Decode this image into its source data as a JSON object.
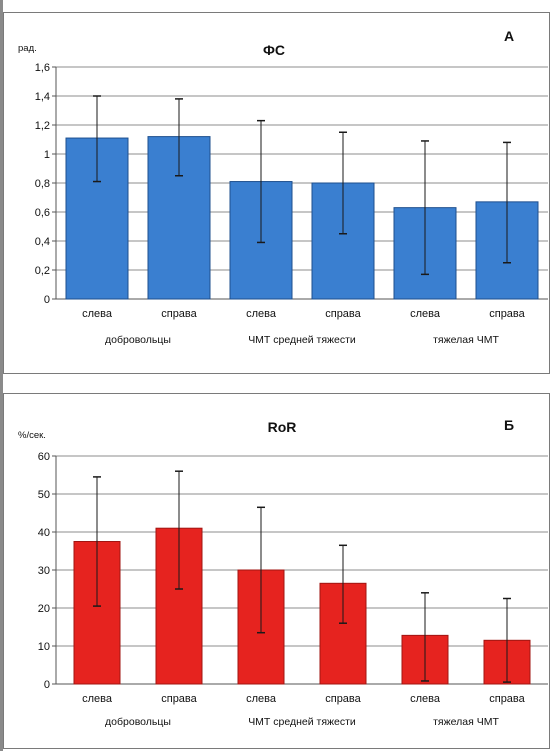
{
  "chart_data": [
    {
      "type": "bar",
      "title": "ФС",
      "panel_letter": "А",
      "ylabel": "рад.",
      "ylim": [
        0,
        1.6
      ],
      "yticks": [
        "0",
        "0,2",
        "0,4",
        "0,6",
        "0,8",
        "1",
        "1,2",
        "1,4",
        "1,6"
      ],
      "categories": [
        "слева",
        "справа",
        "слева",
        "справа",
        "слева",
        "справа"
      ],
      "groups": [
        "добровольцы",
        "ЧМТ средней тяжести",
        "тяжелая ЧМТ"
      ],
      "values": [
        1.11,
        1.12,
        0.81,
        0.8,
        0.63,
        0.67
      ],
      "error_low": [
        0.81,
        0.85,
        0.39,
        0.45,
        0.17,
        0.25
      ],
      "error_high": [
        1.4,
        1.38,
        1.23,
        1.15,
        1.09,
        1.08
      ],
      "bar_color": "#3a7fd0",
      "bar_edge": "#1d4f8e",
      "grid": true
    },
    {
      "type": "bar",
      "title": "RoR",
      "panel_letter": "Б",
      "ylabel": "%/сек.",
      "ylim": [
        0,
        60
      ],
      "yticks": [
        "0",
        "10",
        "20",
        "30",
        "40",
        "50",
        "60"
      ],
      "categories": [
        "слева",
        "справа",
        "слева",
        "справа",
        "слева",
        "справа"
      ],
      "groups": [
        "добровольцы",
        "ЧМТ средней тяжести",
        "тяжелая ЧМТ"
      ],
      "values": [
        37.5,
        41,
        30,
        26.5,
        12.8,
        11.5
      ],
      "error_low": [
        20.5,
        25,
        13.5,
        16,
        0.8,
        0.5
      ],
      "error_high": [
        54.5,
        56,
        46.5,
        36.5,
        24,
        22.5
      ],
      "bar_color": "#e6231f",
      "bar_edge": "#a11512",
      "grid": true
    }
  ]
}
